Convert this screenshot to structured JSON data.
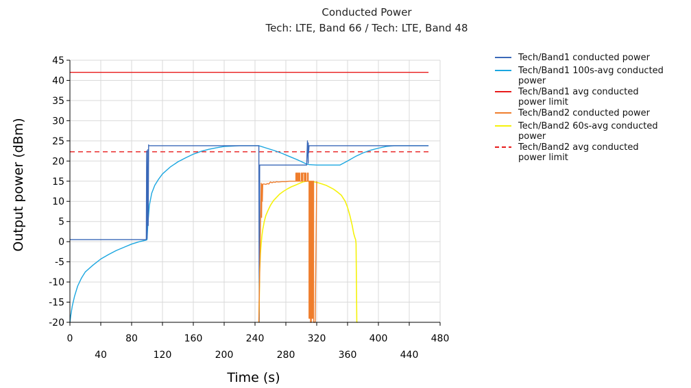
{
  "chart_data": {
    "type": "line",
    "title": "Conducted Power",
    "subtitle": "Tech: LTE, Band 66 / Tech: LTE, Band 48",
    "xlabel": "Time (s)",
    "ylabel": "Output power (dBm)",
    "xlim": [
      0,
      480
    ],
    "ylim": [
      -20,
      45
    ],
    "x_ticks_major": [
      "0",
      "80",
      "160",
      "240",
      "320",
      "400",
      "480"
    ],
    "x_ticks_minor": [
      "40",
      "120",
      "200",
      "280",
      "360",
      "440"
    ],
    "y_ticks": [
      "45",
      "40",
      "35",
      "30",
      "25",
      "20",
      "15",
      "10",
      "5",
      "0",
      "-5",
      "-10",
      "-15",
      "-20"
    ],
    "grid": true,
    "legend_position": "right",
    "series": [
      {
        "name": "Tech/Band1 conducted power",
        "color": "#3a68b8",
        "dash": "solid",
        "x": [
          0,
          99,
          99.5,
          100,
          101,
          101,
          101.5,
          102,
          102,
          245,
          245.5,
          246,
          307,
          307,
          308,
          308,
          309,
          309,
          309.5,
          310,
          465
        ],
        "y": [
          0.5,
          0.5,
          22.5,
          0.8,
          22,
          22.8,
          4,
          24,
          23.8,
          23.8,
          -20,
          19,
          19,
          19.3,
          25,
          24.8,
          19.5,
          24.5,
          22,
          23.8,
          23.8
        ]
      },
      {
        "name": "Tech/Band1 100s-avg conducted power",
        "color": "#1aa6e0",
        "dash": "solid",
        "x": [
          0,
          1,
          3,
          6,
          10,
          15,
          20,
          30,
          40,
          50,
          60,
          70,
          80,
          90,
          99,
          100,
          101,
          103,
          106,
          110,
          115,
          120,
          130,
          140,
          150,
          160,
          170,
          180,
          190,
          200,
          210,
          220,
          230,
          240,
          245,
          255,
          265,
          275,
          285,
          295,
          305,
          310,
          320,
          330,
          340,
          350,
          360,
          370,
          380,
          390,
          400,
          410,
          420,
          440,
          465
        ],
        "y": [
          -20,
          -18.5,
          -16,
          -13.5,
          -11,
          -9,
          -7.5,
          -5.8,
          -4.3,
          -3.2,
          -2.2,
          -1.4,
          -0.6,
          0,
          0.4,
          0.5,
          4,
          9,
          12,
          14,
          15.5,
          16.8,
          18.5,
          19.8,
          20.8,
          21.7,
          22.4,
          22.9,
          23.3,
          23.6,
          23.7,
          23.8,
          23.8,
          23.8,
          23.8,
          23.2,
          22.6,
          21.9,
          21.1,
          20.3,
          19.4,
          19.1,
          19,
          19,
          19,
          19,
          20,
          21.1,
          22,
          22.7,
          23.2,
          23.6,
          23.8,
          23.8,
          23.8
        ]
      },
      {
        "name": "Tech/Band1 avg conducted power limit",
        "color": "#e81919",
        "dash": "solid",
        "x": [
          0,
          465
        ],
        "y": [
          42,
          42
        ]
      },
      {
        "name": "Tech/Band2 conducted power",
        "color": "#ef7d2c",
        "dash": "solid",
        "x": [
          245,
          248,
          248.5,
          249,
          249.5,
          250,
          252,
          254,
          256,
          258,
          259,
          260,
          262,
          264,
          266,
          268,
          270,
          275,
          280,
          285,
          290,
          293,
          293,
          294,
          294,
          295,
          295,
          296,
          296,
          297,
          297,
          298,
          298,
          300,
          300,
          301,
          301,
          302,
          302,
          304,
          304,
          305,
          305,
          306,
          306,
          308,
          308,
          309,
          309,
          310,
          310,
          311,
          311,
          312,
          312,
          313,
          313,
          314,
          314,
          315,
          315,
          316,
          316,
          318,
          320
        ],
        "y": [
          -20,
          14.5,
          6,
          14.2,
          10,
          14.3,
          14.3,
          14.2,
          14.4,
          14.3,
          14.6,
          14.8,
          14.6,
          14.8,
          14.7,
          14.9,
          14.8,
          14.9,
          14.9,
          15,
          15,
          15,
          17,
          17,
          15,
          15,
          17,
          17,
          15,
          15,
          17,
          17,
          15,
          15,
          17,
          17,
          15,
          15,
          17,
          17,
          15,
          15,
          17,
          17,
          15,
          15,
          17,
          17,
          15,
          15,
          -19,
          -19,
          15,
          15,
          -20,
          -20,
          15,
          15,
          -19,
          -19,
          15,
          15,
          -20,
          -20,
          15
        ]
      },
      {
        "name": "Tech/Band2 60s-avg conducted power",
        "color": "#f5f20a",
        "dash": "solid",
        "x": [
          245,
          245.5,
          246,
          247,
          248,
          249,
          250,
          252,
          254,
          257,
          260,
          264,
          268,
          272,
          277,
          282,
          287,
          292,
          297,
          302,
          307,
          312,
          317,
          322,
          327,
          332,
          337,
          342,
          347,
          352,
          357,
          360,
          363,
          366,
          368,
          369.5,
          370.5,
          371,
          372,
          373
        ],
        "y": [
          -20,
          -15,
          -7.5,
          -3,
          -0.5,
          1.5,
          3,
          5,
          6.5,
          7.8,
          9,
          10.2,
          11,
          11.8,
          12.5,
          13.1,
          13.6,
          14,
          14.4,
          14.8,
          15,
          15,
          14.8,
          14.6,
          14.3,
          14,
          13.5,
          13,
          12.3,
          11.5,
          10,
          8.5,
          6.5,
          4,
          2,
          1,
          0.5,
          -0.5,
          -20,
          -20
        ]
      },
      {
        "name": "Tech/Band2 avg conducted power limit",
        "color": "#e81919",
        "dash": "dashed",
        "x": [
          0,
          465
        ],
        "y": [
          22.3,
          22.3
        ]
      }
    ],
    "legend": [
      [
        "Tech/Band1 conducted power"
      ],
      [
        "Tech/Band1 100s-avg conducted",
        "power"
      ],
      [
        "Tech/Band1 avg conducted",
        "power limit"
      ],
      [
        "Tech/Band2 conducted power"
      ],
      [
        "Tech/Band2 60s-avg conducted",
        "power"
      ],
      [
        "Tech/Band2 avg conducted",
        "power limit"
      ]
    ]
  }
}
